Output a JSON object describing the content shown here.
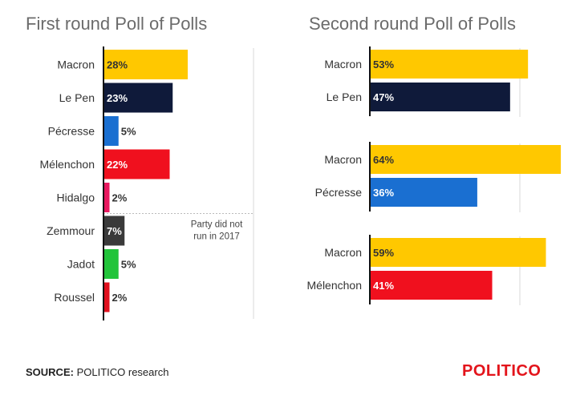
{
  "colors": {
    "Macron": "#FFC800",
    "Le Pen": "#0F1A3A",
    "Pécresse": "#1A6FD1",
    "Mélenchon": "#F0101E",
    "Hidalgo": "#E8195F",
    "Zemmour": "#3A3A3A",
    "Jadot": "#22C43A",
    "Roussel": "#E0101E",
    "brand": "#E3141B"
  },
  "chart_data": [
    {
      "type": "bar",
      "orientation": "horizontal",
      "title": "First round Poll of Polls",
      "categories": [
        "Macron",
        "Le Pen",
        "Pécresse",
        "Mélenchon",
        "Hidalgo",
        "Zemmour",
        "Jadot",
        "Roussel"
      ],
      "values": [
        28,
        23,
        5,
        22,
        2,
        7,
        5,
        2
      ],
      "labels": [
        "28%",
        "23%",
        "5%",
        "22%",
        "2%",
        "7%",
        "5%",
        "2%"
      ],
      "annotation": "Party did not run in 2017",
      "xlim": [
        0,
        50
      ]
    },
    {
      "type": "bar",
      "orientation": "horizontal",
      "title": "Second round Poll of Polls",
      "xlim": [
        0,
        70
      ],
      "matchups": [
        {
          "categories": [
            "Macron",
            "Le Pen"
          ],
          "values": [
            53,
            47
          ],
          "labels": [
            "53%",
            "47%"
          ]
        },
        {
          "categories": [
            "Macron",
            "Pécresse"
          ],
          "values": [
            64,
            36
          ],
          "labels": [
            "64%",
            "36%"
          ]
        },
        {
          "categories": [
            "Macron",
            "Mélenchon"
          ],
          "values": [
            59,
            41
          ],
          "labels": [
            "59%",
            "41%"
          ]
        }
      ]
    }
  ],
  "footer": {
    "source_label": "SOURCE:",
    "source_text": "POLITICO research",
    "brand": "POLITICO"
  }
}
